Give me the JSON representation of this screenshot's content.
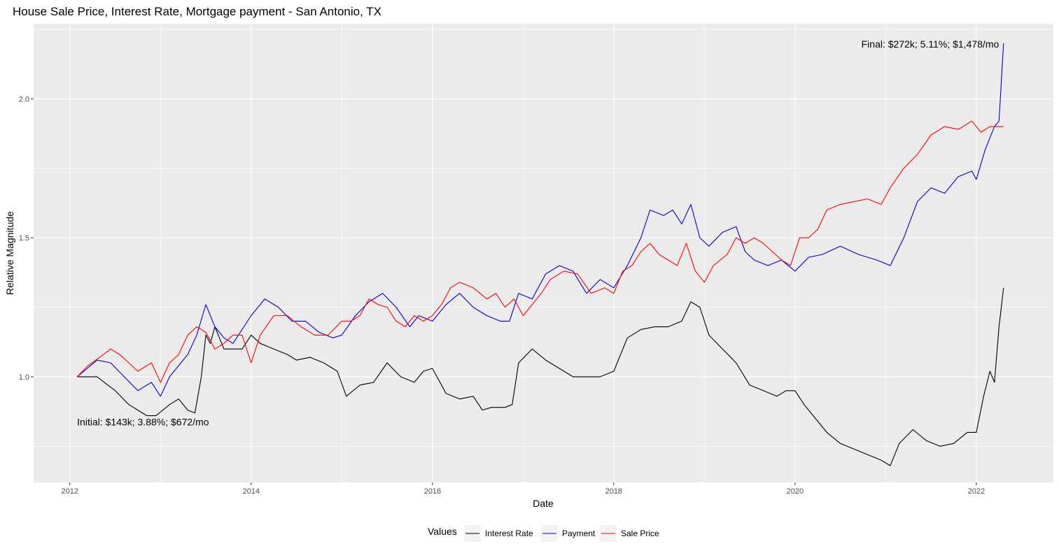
{
  "chart_data": {
    "type": "line",
    "title": "House Sale Price, Interest Rate, Mortgage payment - San Antonio, TX",
    "xlabel": "Date",
    "ylabel": "Relative Magnitude",
    "x_ticks": [
      "2012",
      "2014",
      "2016",
      "2018",
      "2020",
      "2022"
    ],
    "y_ticks": [
      "1.0",
      "1.5",
      "2.0"
    ],
    "xlim": [
      2011.6,
      2022.85
    ],
    "ylim": [
      0.62,
      2.27
    ],
    "grid": true,
    "legend": {
      "title": "Values",
      "position": "bottom",
      "items": [
        "Interest Rate",
        "Payment",
        "Sale Price"
      ]
    },
    "annotations": [
      {
        "text": "Initial: $143k; 3.88%; $672/mo",
        "x": 2012.08,
        "y": 0.825
      },
      {
        "text": "Final: $272k; 5.11%; $1,478/mo",
        "x": 2022.25,
        "y": 2.185
      }
    ],
    "series": [
      {
        "name": "Interest Rate",
        "color": "#000000",
        "x": [
          2012.08,
          2012.3,
          2012.5,
          2012.65,
          2012.75,
          2012.85,
          2012.95,
          2013.1,
          2013.2,
          2013.3,
          2013.38,
          2013.45,
          2013.5,
          2013.55,
          2013.6,
          2013.7,
          2013.8,
          2013.9,
          2014.0,
          2014.1,
          2014.25,
          2014.4,
          2014.5,
          2014.65,
          2014.8,
          2014.95,
          2015.05,
          2015.2,
          2015.35,
          2015.5,
          2015.65,
          2015.8,
          2015.9,
          2016.0,
          2016.15,
          2016.3,
          2016.45,
          2016.55,
          2016.65,
          2016.8,
          2016.88,
          2016.95,
          2017.1,
          2017.25,
          2017.4,
          2017.55,
          2017.7,
          2017.85,
          2018.0,
          2018.15,
          2018.3,
          2018.45,
          2018.6,
          2018.75,
          2018.85,
          2018.95,
          2019.05,
          2019.2,
          2019.35,
          2019.5,
          2019.65,
          2019.8,
          2019.9,
          2020.0,
          2020.1,
          2020.2,
          2020.35,
          2020.5,
          2020.65,
          2020.8,
          2020.95,
          2021.05,
          2021.15,
          2021.3,
          2021.45,
          2021.6,
          2021.75,
          2021.9,
          2022.0,
          2022.08,
          2022.15,
          2022.2,
          2022.25,
          2022.3
        ],
        "y": [
          1.0,
          1.0,
          0.95,
          0.9,
          0.88,
          0.86,
          0.86,
          0.9,
          0.92,
          0.88,
          0.87,
          1.0,
          1.15,
          1.12,
          1.18,
          1.1,
          1.1,
          1.1,
          1.15,
          1.12,
          1.1,
          1.08,
          1.06,
          1.07,
          1.05,
          1.02,
          0.93,
          0.97,
          0.98,
          1.05,
          1.0,
          0.98,
          1.02,
          1.03,
          0.94,
          0.92,
          0.93,
          0.88,
          0.89,
          0.89,
          0.9,
          1.05,
          1.1,
          1.06,
          1.03,
          1.0,
          1.0,
          1.0,
          1.02,
          1.14,
          1.17,
          1.18,
          1.18,
          1.2,
          1.27,
          1.25,
          1.15,
          1.1,
          1.05,
          0.97,
          0.95,
          0.93,
          0.95,
          0.95,
          0.9,
          0.86,
          0.8,
          0.76,
          0.74,
          0.72,
          0.7,
          0.68,
          0.76,
          0.81,
          0.77,
          0.75,
          0.76,
          0.8,
          0.8,
          0.93,
          1.02,
          0.98,
          1.18,
          1.32
        ]
      },
      {
        "name": "Payment",
        "color": "#0000cd",
        "x": [
          2012.08,
          2012.3,
          2012.45,
          2012.6,
          2012.75,
          2012.9,
          2013.0,
          2013.1,
          2013.3,
          2013.4,
          2013.5,
          2013.6,
          2013.7,
          2013.8,
          2013.9,
          2014.0,
          2014.15,
          2014.3,
          2014.45,
          2014.6,
          2014.75,
          2014.9,
          2015.0,
          2015.15,
          2015.3,
          2015.45,
          2015.6,
          2015.75,
          2015.85,
          2016.0,
          2016.15,
          2016.3,
          2016.45,
          2016.6,
          2016.75,
          2016.85,
          2016.95,
          2017.1,
          2017.25,
          2017.4,
          2017.55,
          2017.7,
          2017.85,
          2018.0,
          2018.15,
          2018.3,
          2018.4,
          2018.55,
          2018.65,
          2018.75,
          2018.85,
          2018.95,
          2019.05,
          2019.2,
          2019.35,
          2019.45,
          2019.55,
          2019.7,
          2019.85,
          2020.0,
          2020.15,
          2020.3,
          2020.5,
          2020.7,
          2020.9,
          2021.05,
          2021.2,
          2021.35,
          2021.5,
          2021.65,
          2021.8,
          2021.95,
          2022.0,
          2022.1,
          2022.2,
          2022.25,
          2022.3
        ],
        "y": [
          1.0,
          1.06,
          1.05,
          1.0,
          0.95,
          0.98,
          0.93,
          1.0,
          1.08,
          1.15,
          1.26,
          1.18,
          1.14,
          1.12,
          1.17,
          1.22,
          1.28,
          1.25,
          1.2,
          1.2,
          1.16,
          1.14,
          1.15,
          1.22,
          1.27,
          1.3,
          1.25,
          1.18,
          1.22,
          1.2,
          1.26,
          1.3,
          1.25,
          1.22,
          1.2,
          1.2,
          1.3,
          1.28,
          1.37,
          1.4,
          1.38,
          1.3,
          1.35,
          1.32,
          1.4,
          1.5,
          1.6,
          1.58,
          1.6,
          1.55,
          1.62,
          1.5,
          1.47,
          1.52,
          1.54,
          1.45,
          1.42,
          1.4,
          1.42,
          1.38,
          1.43,
          1.44,
          1.47,
          1.44,
          1.42,
          1.4,
          1.5,
          1.63,
          1.68,
          1.66,
          1.72,
          1.74,
          1.71,
          1.82,
          1.9,
          1.92,
          2.2
        ]
      },
      {
        "name": "Sale Price",
        "color": "#ff0000",
        "x": [
          2012.08,
          2012.2,
          2012.33,
          2012.45,
          2012.55,
          2012.65,
          2012.75,
          2012.9,
          2013.0,
          2013.1,
          2013.2,
          2013.3,
          2013.4,
          2013.5,
          2013.6,
          2013.7,
          2013.8,
          2013.9,
          2014.0,
          2014.1,
          2014.25,
          2014.4,
          2014.55,
          2014.7,
          2014.85,
          2015.0,
          2015.1,
          2015.2,
          2015.3,
          2015.4,
          2015.5,
          2015.6,
          2015.7,
          2015.8,
          2015.9,
          2016.0,
          2016.1,
          2016.2,
          2016.3,
          2016.45,
          2016.6,
          2016.7,
          2016.8,
          2016.9,
          2017.0,
          2017.1,
          2017.2,
          2017.3,
          2017.45,
          2017.6,
          2017.75,
          2017.9,
          2018.0,
          2018.1,
          2018.2,
          2018.3,
          2018.4,
          2018.5,
          2018.6,
          2018.7,
          2018.8,
          2018.9,
          2019.0,
          2019.1,
          2019.25,
          2019.35,
          2019.45,
          2019.55,
          2019.65,
          2019.75,
          2019.85,
          2019.95,
          2020.05,
          2020.15,
          2020.25,
          2020.35,
          2020.5,
          2020.65,
          2020.8,
          2020.95,
          2021.05,
          2021.2,
          2021.35,
          2021.5,
          2021.65,
          2021.8,
          2021.95,
          2022.05,
          2022.15,
          2022.3
        ],
        "y": [
          1.0,
          1.04,
          1.07,
          1.1,
          1.08,
          1.05,
          1.02,
          1.05,
          0.98,
          1.05,
          1.08,
          1.15,
          1.18,
          1.16,
          1.1,
          1.12,
          1.15,
          1.15,
          1.05,
          1.15,
          1.22,
          1.22,
          1.18,
          1.15,
          1.15,
          1.2,
          1.2,
          1.22,
          1.28,
          1.26,
          1.25,
          1.2,
          1.18,
          1.22,
          1.2,
          1.22,
          1.26,
          1.32,
          1.34,
          1.32,
          1.28,
          1.3,
          1.25,
          1.28,
          1.22,
          1.26,
          1.3,
          1.35,
          1.38,
          1.37,
          1.3,
          1.32,
          1.3,
          1.38,
          1.4,
          1.45,
          1.48,
          1.44,
          1.42,
          1.4,
          1.48,
          1.38,
          1.34,
          1.4,
          1.44,
          1.5,
          1.48,
          1.5,
          1.48,
          1.45,
          1.42,
          1.4,
          1.5,
          1.5,
          1.53,
          1.6,
          1.62,
          1.63,
          1.64,
          1.62,
          1.68,
          1.75,
          1.8,
          1.87,
          1.9,
          1.89,
          1.92,
          1.88,
          1.9,
          1.9
        ]
      }
    ]
  }
}
